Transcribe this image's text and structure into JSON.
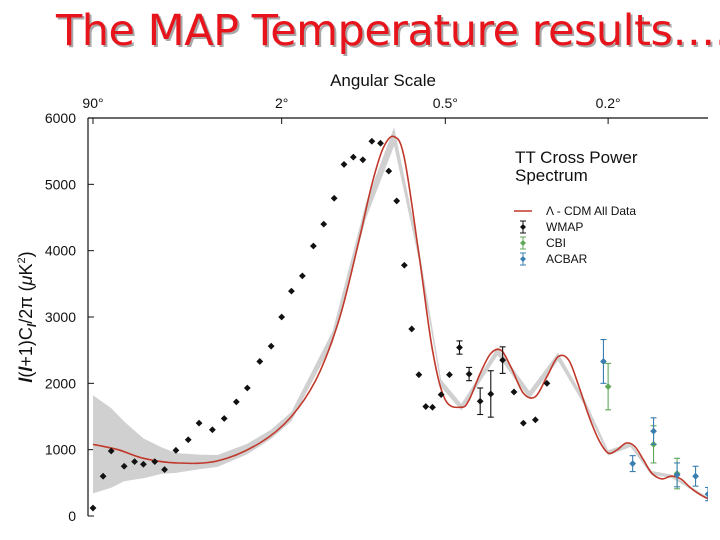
{
  "slide": {
    "title": "The MAP Temperature results….."
  },
  "chart_data": {
    "type": "scatter",
    "top_axis_label": "Angular Scale",
    "top_ticks": [
      {
        "label": "90°",
        "l": 2
      },
      {
        "label": "2°",
        "l": 90
      },
      {
        "label": "0.5°",
        "l": 360
      },
      {
        "label": "0.2°",
        "l": 900
      }
    ],
    "ylabel": "l(l+1)C_l/2π (μK²)",
    "ylabel_parts": {
      "a": "l",
      "b": "(",
      "c": "l",
      "d": "+1)C",
      "e": "l",
      "f": "/2π (",
      "g": "μ",
      "h": "K",
      "i": "2",
      "j": ")"
    },
    "ylim": [
      0,
      6000
    ],
    "yticks": [
      "0",
      "1000",
      "2000",
      "3000",
      "4000",
      "5000",
      "6000"
    ],
    "x_axis": {
      "scale": "sqrt-like multipole l",
      "range": [
        2,
        1400
      ],
      "ticks_shown": false
    },
    "legend": {
      "title_lines": [
        "TT Cross Power",
        "Spectrum"
      ],
      "position": "top-right",
      "entries": [
        {
          "label": "Λ - CDM All Data",
          "kind": "line",
          "color": "#c0392b"
        },
        {
          "label": "WMAP",
          "kind": "marker",
          "color": "#111111"
        },
        {
          "label": "CBI",
          "kind": "marker",
          "color": "#5fa85a"
        },
        {
          "label": "ACBAR",
          "kind": "marker",
          "color": "#3a7fb0"
        }
      ]
    },
    "model": {
      "name": "Λ - CDM All Data",
      "color": "#c0392b",
      "l": [
        2,
        5,
        10,
        20,
        40,
        70,
        100,
        130,
        160,
        190,
        210,
        230,
        250,
        270,
        300,
        330,
        360,
        400,
        420,
        450,
        480,
        510,
        540,
        580,
        620,
        660,
        700,
        740,
        780,
        820,
        860,
        900,
        940,
        980,
        1020,
        1060,
        1100,
        1150,
        1200,
        1250,
        1300,
        1350,
        1400
      ],
      "y": [
        1080,
        1000,
        870,
        800,
        830,
        1100,
        1500,
        2100,
        3000,
        4200,
        5000,
        5550,
        5720,
        5400,
        3950,
        2500,
        1750,
        1640,
        1750,
        2150,
        2450,
        2500,
        2250,
        1850,
        1800,
        2100,
        2400,
        2350,
        1950,
        1500,
        1150,
        950,
        1000,
        1100,
        1050,
        850,
        650,
        560,
        600,
        560,
        430,
        330,
        260
      ],
      "cosmic_variance_band": {
        "l": [
          2,
          4,
          6,
          10,
          15,
          20,
          30,
          40,
          60,
          80,
          100,
          150,
          200,
          250,
          300,
          350,
          400,
          500,
          600,
          700,
          800,
          900,
          1000,
          1100,
          1200,
          1300,
          1400
        ],
        "halfwidth": [
          740,
          600,
          450,
          300,
          200,
          150,
          110,
          90,
          80,
          70,
          70,
          90,
          120,
          140,
          90,
          60,
          50,
          60,
          60,
          60,
          50,
          40,
          35,
          30,
          25,
          20,
          20
        ]
      }
    },
    "series": [
      {
        "name": "WMAP",
        "color": "#111111",
        "l": [
          2,
          3,
          4,
          6,
          8,
          10,
          13,
          16,
          20,
          25,
          30,
          37,
          44,
          52,
          60,
          70,
          80,
          90,
          100,
          112,
          125,
          138,
          152,
          166,
          180,
          195,
          210,
          225,
          240,
          255,
          270,
          285,
          300,
          315,
          330,
          350,
          370,
          395,
          420,
          450,
          480,
          515,
          550,
          580,
          620,
          660
        ],
        "y": [
          120,
          600,
          980,
          750,
          820,
          780,
          820,
          700,
          990,
          1150,
          1400,
          1300,
          1470,
          1720,
          1930,
          2330,
          2560,
          3000,
          3390,
          3620,
          4070,
          4400,
          4790,
          5300,
          5410,
          5370,
          5650,
          5620,
          5200,
          4750,
          3780,
          2820,
          2130,
          1650,
          1640,
          1830,
          2130,
          2540,
          2140,
          1730,
          1840,
          2350,
          1870,
          1400,
          1450,
          2000
        ],
        "err": [
          0,
          0,
          0,
          0,
          0,
          0,
          0,
          0,
          0,
          0,
          0,
          0,
          0,
          0,
          0,
          0,
          0,
          0,
          0,
          0,
          0,
          0,
          0,
          0,
          0,
          0,
          0,
          0,
          0,
          0,
          0,
          0,
          0,
          0,
          0,
          0,
          0,
          100,
          100,
          200,
          350,
          200,
          0,
          0,
          0,
          0
        ]
      },
      {
        "name": "CBI",
        "color": "#5fa85a",
        "l": [
          900,
          1110,
          1230
        ],
        "y": [
          1950,
          1080,
          640
        ],
        "err": [
          350,
          280,
          230
        ]
      },
      {
        "name": "ACBAR",
        "color": "#3a7fb0",
        "l": [
          880,
          1010,
          1110,
          1230,
          1330,
          1400
        ],
        "y": [
          2330,
          790,
          1280,
          620,
          600,
          330
        ],
        "err": [
          330,
          120,
          200,
          180,
          150,
          100
        ]
      }
    ]
  }
}
